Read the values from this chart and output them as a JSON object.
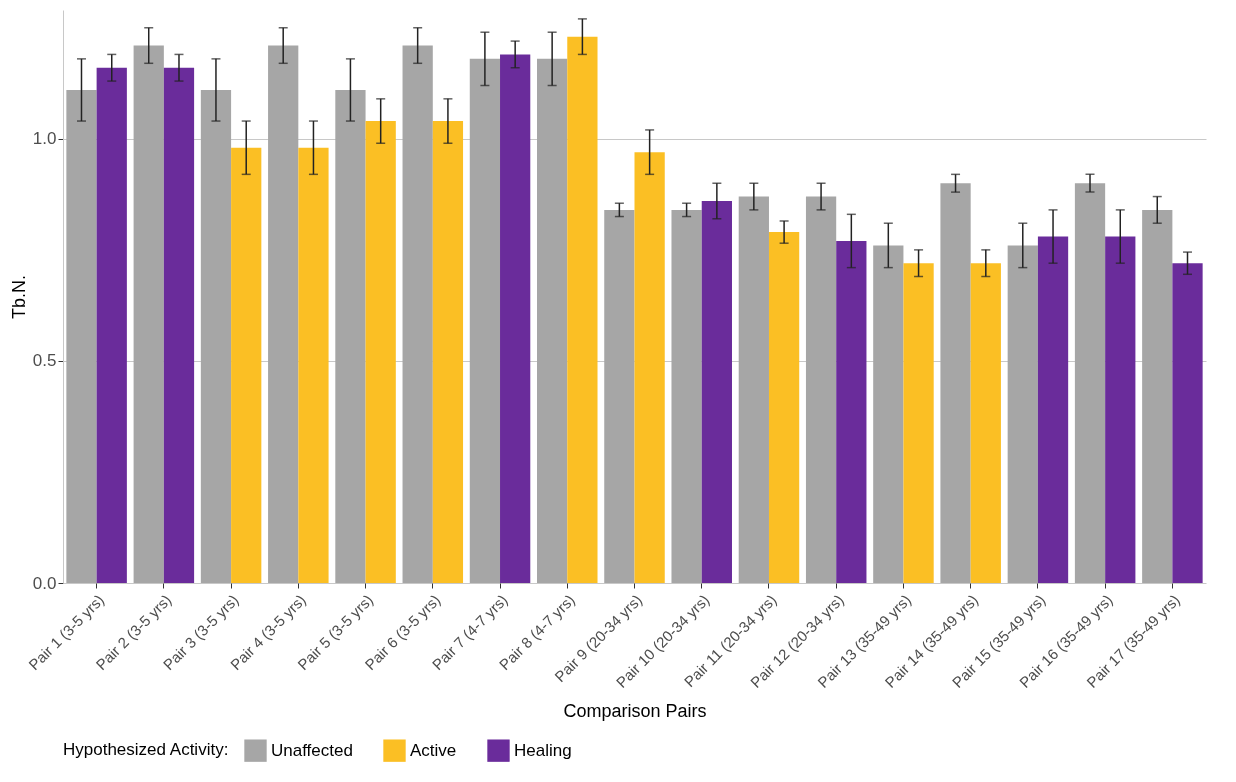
{
  "chart_data": {
    "type": "bar",
    "xlabel": "Comparison Pairs",
    "ylabel": "Tb.N.",
    "legend_title": "Hypothesized Activity:",
    "categories": [
      "Pair 1 (3-5 yrs)",
      "Pair 2 (3-5 yrs)",
      "Pair 3 (3-5 yrs)",
      "Pair 4 (3-5 yrs)",
      "Pair 5 (3-5 yrs)",
      "Pair 6 (3-5 yrs)",
      "Pair 7 (4-7 yrs)",
      "Pair 8 (4-7 yrs)",
      "Pair 9 (20-34 yrs)",
      "Pair 10 (20-34 yrs)",
      "Pair 11 (20-34 yrs)",
      "Pair 12 (20-34 yrs)",
      "Pair 13 (35-49 yrs)",
      "Pair 14 (35-49 yrs)",
      "Pair 15 (35-49 yrs)",
      "Pair 16 (35-49 yrs)",
      "Pair 17 (35-49 yrs)"
    ],
    "series": [
      {
        "name": "Unaffected",
        "color": "#a6a6a6",
        "values": [
          1.11,
          1.21,
          1.11,
          1.21,
          1.11,
          1.21,
          1.18,
          1.18,
          0.84,
          0.84,
          0.87,
          0.87,
          0.76,
          0.9,
          0.76,
          0.9,
          0.84
        ],
        "errors": [
          0.07,
          0.04,
          0.07,
          0.04,
          0.07,
          0.04,
          0.06,
          0.06,
          0.015,
          0.015,
          0.03,
          0.03,
          0.05,
          0.02,
          0.05,
          0.02,
          0.03
        ]
      },
      {
        "name": "Active",
        "color": "#fbbf24",
        "values": [
          null,
          null,
          0.98,
          0.98,
          1.04,
          1.04,
          null,
          1.23,
          0.97,
          null,
          0.79,
          null,
          0.72,
          0.72,
          null,
          null,
          null
        ],
        "errors": [
          null,
          null,
          0.06,
          0.06,
          0.05,
          0.05,
          null,
          0.04,
          0.05,
          null,
          0.025,
          null,
          0.03,
          0.03,
          null,
          null,
          null
        ]
      },
      {
        "name": "Healing",
        "color": "#6a2c9b",
        "values": [
          1.16,
          1.16,
          null,
          null,
          null,
          null,
          1.19,
          null,
          null,
          0.86,
          null,
          0.77,
          null,
          null,
          0.78,
          0.78,
          0.72
        ],
        "errors": [
          0.03,
          0.03,
          null,
          null,
          null,
          null,
          0.03,
          null,
          null,
          0.04,
          null,
          0.06,
          null,
          null,
          0.06,
          0.06,
          0.025
        ]
      }
    ],
    "ylim": [
      0,
      1.29
    ],
    "yticks": [
      {
        "value": 0,
        "label": "0.0"
      },
      {
        "value": 0.5,
        "label": "0.5"
      },
      {
        "value": 1,
        "label": "1.0"
      }
    ],
    "grid": "y",
    "legend": "bottom"
  }
}
